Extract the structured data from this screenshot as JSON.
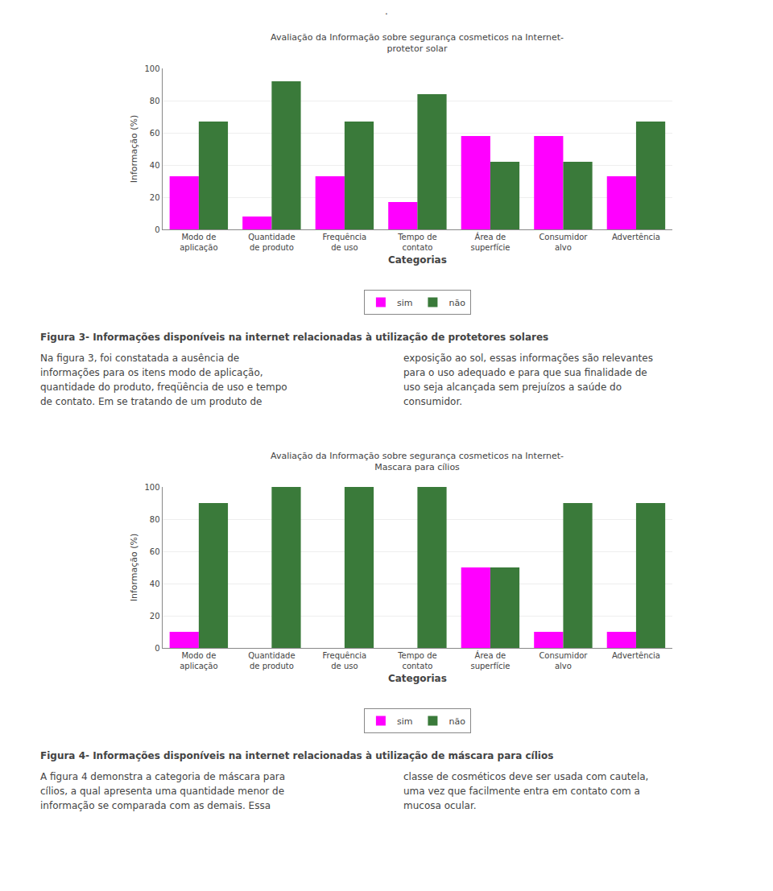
{
  "annotations": [
    "."
  ],
  "chart_data": [
    {
      "type": "bar",
      "title": "Avaliação da Informação sobre segurança cosmeticos na Internet-\nprotetor solar",
      "categories": [
        "Modo de\naplicação",
        "Quantidade\nde produto",
        "Frequência\nde uso",
        "Tempo de\ncontato",
        "Área de\nsuperfície",
        "Consumidor\nalvo",
        "Advertência"
      ],
      "series": [
        {
          "name": "sim",
          "color": "#FF00FF",
          "values": [
            33,
            8,
            33,
            17,
            58,
            58,
            33
          ]
        },
        {
          "name": "não",
          "color": "#3a7a3a",
          "values": [
            67,
            92,
            67,
            84,
            42,
            42,
            67
          ]
        }
      ],
      "ylabel": "Informação (%)",
      "xlabel": "Categorias",
      "ylim": [
        0,
        100
      ],
      "yticks": [
        0,
        20,
        40,
        60,
        80,
        100
      ],
      "grid": true,
      "legend": "bottom",
      "annotations": [
        "Figura 3- Informações disponíveis na internet relacionadas à utilização de protetores solares",
        "Na figura 3, foi constatada a ausência de",
        "informações para os itens modo de aplicação,",
        "quantidade do produto, freqüência de uso e tempo",
        "de contato. Em se tratando de um produto de",
        "exposição ao sol, essas informações são relevantes",
        "para o uso adequado e para que sua finalidade de",
        "uso seja alcançada sem prejuízos a saúde do",
        "consumidor."
      ]
    },
    {
      "type": "bar",
      "title": "Avaliação da Informação sobre segurança cosmeticos na Internet-\nMascara para cílios",
      "categories": [
        "Modo de\naplicação",
        "Quantidade\nde produto",
        "Frequência\nde uso",
        "Tempo de\ncontato",
        "Área de\nsuperfície",
        "Consumidor\nalvo",
        "Advertência"
      ],
      "series": [
        {
          "name": "sim",
          "color": "#FF00FF",
          "values": [
            10,
            0,
            0,
            0,
            50,
            10,
            10
          ]
        },
        {
          "name": "não",
          "color": "#3a7a3a",
          "values": [
            90,
            100,
            100,
            100,
            50,
            90,
            90
          ]
        }
      ],
      "ylabel": "Informação (%)",
      "xlabel": "Categorias",
      "ylim": [
        0,
        100
      ],
      "yticks": [
        0,
        20,
        40,
        60,
        80,
        100
      ],
      "grid": true,
      "legend": "bottom",
      "annotations": [
        "Figura 4- Informações disponíveis na internet relacionadas à utilização de máscara para cílios",
        "A figura 4 demonstra a categoria de máscara para",
        "cílios, a qual apresenta uma quantidade menor de",
        "informação se comparada com as demais. Essa",
        "classe de cosméticos deve ser usada com cautela,",
        "uma vez que facilmente entra em contato com a",
        "mucosa ocular."
      ]
    }
  ]
}
